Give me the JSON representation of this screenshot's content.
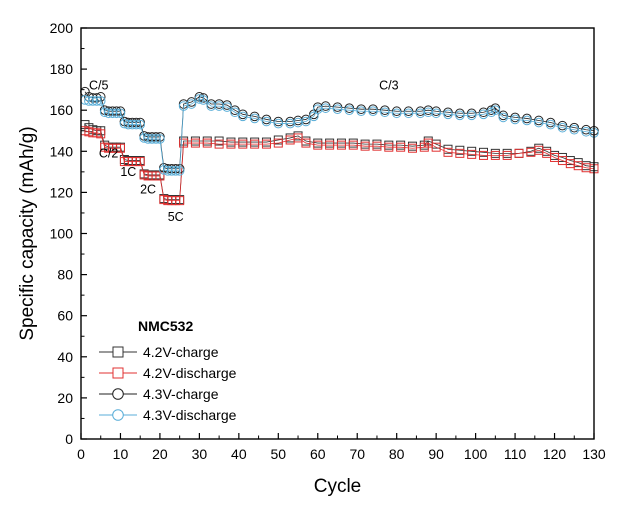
{
  "chart_data": {
    "type": "scatter",
    "xlabel": "Cycle",
    "ylabel": "Specific capacity (mAh/g)",
    "xlim": [
      0,
      130
    ],
    "ylim": [
      0,
      200
    ],
    "xticks": [
      "0",
      "10",
      "20",
      "30",
      "40",
      "50",
      "60",
      "70",
      "80",
      "90",
      "100",
      "110",
      "120",
      "130"
    ],
    "yticks": [
      "0",
      "20",
      "40",
      "60",
      "80",
      "100",
      "120",
      "140",
      "160",
      "180",
      "200"
    ],
    "grid": false,
    "legend_position": "bottom-left",
    "legend_title": "NMC532",
    "annotations": [
      {
        "text": "C/5",
        "x": 4.5,
        "y": 170
      },
      {
        "text": "C/2",
        "x": 7,
        "y": 137
      },
      {
        "text": "1C",
        "x": 12,
        "y": 128
      },
      {
        "text": "2C",
        "x": 17,
        "y": 119.5
      },
      {
        "text": "5C",
        "x": 24,
        "y": 106
      },
      {
        "text": "C/3",
        "x": 78,
        "y": 170
      }
    ],
    "series": [
      {
        "name": "4.2V-charge",
        "marker": "square",
        "color": "#333333",
        "values": [
          [
            1,
            153
          ],
          [
            2,
            151.5
          ],
          [
            3,
            150.5
          ],
          [
            4,
            150
          ],
          [
            5,
            150
          ],
          [
            6,
            143
          ],
          [
            7,
            142
          ],
          [
            8,
            142
          ],
          [
            9,
            142
          ],
          [
            10,
            142
          ],
          [
            11,
            136
          ],
          [
            12,
            135.5
          ],
          [
            13,
            135.5
          ],
          [
            14,
            135.5
          ],
          [
            15,
            135.5
          ],
          [
            16,
            129
          ],
          [
            17,
            128.5
          ],
          [
            18,
            128.5
          ],
          [
            19,
            128.5
          ],
          [
            20,
            128.5
          ],
          [
            21,
            117
          ],
          [
            22,
            116.5
          ],
          [
            23,
            116.5
          ],
          [
            24,
            116.5
          ],
          [
            25,
            116.5
          ],
          [
            26,
            145
          ],
          [
            29,
            145
          ],
          [
            32,
            145
          ],
          [
            35,
            145
          ],
          [
            38,
            144.5
          ],
          [
            41,
            144.5
          ],
          [
            44,
            144.5
          ],
          [
            47,
            144.5
          ],
          [
            50,
            145.5
          ],
          [
            53,
            146.5
          ],
          [
            55,
            147.5
          ],
          [
            57,
            145
          ],
          [
            60,
            144
          ],
          [
            63,
            144
          ],
          [
            66,
            144
          ],
          [
            69,
            144
          ],
          [
            72,
            143.5
          ],
          [
            75,
            143.5
          ],
          [
            78,
            143
          ],
          [
            81,
            143
          ],
          [
            84,
            142.5
          ],
          [
            87,
            143
          ],
          [
            88,
            145
          ],
          [
            90,
            143.5
          ],
          [
            93,
            141
          ],
          [
            96,
            140.5
          ],
          [
            99,
            140
          ],
          [
            102,
            139.5
          ],
          [
            105,
            139
          ],
          [
            108,
            139
          ],
          [
            111,
            139
          ],
          [
            114,
            140
          ],
          [
            116,
            141.5
          ],
          [
            118,
            140
          ],
          [
            120,
            138
          ],
          [
            122,
            137
          ],
          [
            124,
            135.5
          ],
          [
            126,
            134.5
          ],
          [
            128,
            133
          ],
          [
            130,
            132.5
          ]
        ]
      },
      {
        "name": "4.2V-discharge",
        "marker": "square",
        "color": "#e03030",
        "values": [
          [
            1,
            150
          ],
          [
            2,
            149.5
          ],
          [
            3,
            149
          ],
          [
            4,
            149
          ],
          [
            5,
            148.5
          ],
          [
            6,
            142
          ],
          [
            7,
            141.5
          ],
          [
            8,
            141.5
          ],
          [
            9,
            141.5
          ],
          [
            10,
            141.5
          ],
          [
            11,
            135
          ],
          [
            12,
            135
          ],
          [
            13,
            135
          ],
          [
            14,
            135
          ],
          [
            15,
            135
          ],
          [
            16,
            128.5
          ],
          [
            17,
            128
          ],
          [
            18,
            128
          ],
          [
            19,
            128
          ],
          [
            20,
            128
          ],
          [
            21,
            116.5
          ],
          [
            22,
            116
          ],
          [
            23,
            116
          ],
          [
            24,
            116
          ],
          [
            25,
            116
          ],
          [
            26,
            144
          ],
          [
            29,
            144
          ],
          [
            32,
            144
          ],
          [
            35,
            143.5
          ],
          [
            38,
            143.5
          ],
          [
            41,
            143.5
          ],
          [
            44,
            143.5
          ],
          [
            47,
            143.5
          ],
          [
            50,
            144
          ],
          [
            53,
            145.5
          ],
          [
            55,
            146.5
          ],
          [
            57,
            144
          ],
          [
            60,
            143
          ],
          [
            63,
            143
          ],
          [
            66,
            143
          ],
          [
            69,
            143
          ],
          [
            72,
            142.5
          ],
          [
            75,
            142.5
          ],
          [
            78,
            142
          ],
          [
            81,
            142
          ],
          [
            84,
            141.5
          ],
          [
            87,
            142
          ],
          [
            88,
            144
          ],
          [
            90,
            142
          ],
          [
            93,
            139.5
          ],
          [
            96,
            139
          ],
          [
            99,
            138.5
          ],
          [
            102,
            138
          ],
          [
            105,
            138
          ],
          [
            108,
            138
          ],
          [
            111,
            139
          ],
          [
            114,
            139.5
          ],
          [
            116,
            140.5
          ],
          [
            118,
            139
          ],
          [
            120,
            137
          ],
          [
            122,
            135.5
          ],
          [
            124,
            134
          ],
          [
            126,
            133
          ],
          [
            128,
            132
          ],
          [
            130,
            131.5
          ]
        ]
      },
      {
        "name": "4.3V-charge",
        "marker": "circle",
        "color": "#222222",
        "values": [
          [
            1,
            169
          ],
          [
            2,
            166.5
          ],
          [
            3,
            166
          ],
          [
            4,
            166
          ],
          [
            5,
            166.5
          ],
          [
            6,
            160
          ],
          [
            7,
            159.5
          ],
          [
            8,
            159.5
          ],
          [
            9,
            159.5
          ],
          [
            10,
            159.5
          ],
          [
            11,
            154.5
          ],
          [
            12,
            154
          ],
          [
            13,
            154
          ],
          [
            14,
            154
          ],
          [
            15,
            154
          ],
          [
            16,
            147.5
          ],
          [
            17,
            147
          ],
          [
            18,
            147
          ],
          [
            19,
            147
          ],
          [
            20,
            147
          ],
          [
            21,
            132
          ],
          [
            22,
            131.5
          ],
          [
            23,
            131.5
          ],
          [
            24,
            131.5
          ],
          [
            25,
            131.5
          ],
          [
            26,
            163
          ],
          [
            28,
            164
          ],
          [
            30,
            166.5
          ],
          [
            31,
            166
          ],
          [
            33,
            163
          ],
          [
            35,
            163
          ],
          [
            37,
            162.5
          ],
          [
            39,
            160
          ],
          [
            41,
            158
          ],
          [
            44,
            157
          ],
          [
            47,
            155.5
          ],
          [
            50,
            154.5
          ],
          [
            53,
            154.5
          ],
          [
            55,
            155
          ],
          [
            57,
            155.5
          ],
          [
            59,
            158
          ],
          [
            60,
            161.5
          ],
          [
            62,
            162
          ],
          [
            65,
            161.5
          ],
          [
            68,
            161
          ],
          [
            71,
            160.5
          ],
          [
            74,
            160.5
          ],
          [
            77,
            160
          ],
          [
            80,
            159.5
          ],
          [
            83,
            159.5
          ],
          [
            86,
            159.5
          ],
          [
            88,
            160
          ],
          [
            90,
            159.5
          ],
          [
            93,
            159
          ],
          [
            96,
            158.5
          ],
          [
            99,
            158.5
          ],
          [
            102,
            159
          ],
          [
            104,
            160
          ],
          [
            105,
            161
          ],
          [
            107,
            157.5
          ],
          [
            110,
            156.5
          ],
          [
            113,
            156
          ],
          [
            116,
            155
          ],
          [
            119,
            154
          ],
          [
            122,
            152.5
          ],
          [
            125,
            151.5
          ],
          [
            128,
            150.5
          ],
          [
            130,
            150
          ]
        ]
      },
      {
        "name": "4.3V-discharge",
        "marker": "circle",
        "color": "#5aaed8",
        "values": [
          [
            1,
            165
          ],
          [
            2,
            164.5
          ],
          [
            3,
            164.5
          ],
          [
            4,
            164.5
          ],
          [
            5,
            164.5
          ],
          [
            6,
            159
          ],
          [
            7,
            158.5
          ],
          [
            8,
            158.5
          ],
          [
            9,
            158.5
          ],
          [
            10,
            158.5
          ],
          [
            11,
            153.5
          ],
          [
            12,
            153
          ],
          [
            13,
            153
          ],
          [
            14,
            153
          ],
          [
            15,
            153
          ],
          [
            16,
            146.5
          ],
          [
            17,
            146
          ],
          [
            18,
            146
          ],
          [
            19,
            146
          ],
          [
            20,
            146
          ],
          [
            21,
            131
          ],
          [
            22,
            130.5
          ],
          [
            23,
            130.5
          ],
          [
            24,
            130.5
          ],
          [
            25,
            130.5
          ],
          [
            26,
            162
          ],
          [
            28,
            163
          ],
          [
            30,
            165.5
          ],
          [
            31,
            165
          ],
          [
            33,
            162
          ],
          [
            35,
            162
          ],
          [
            37,
            161.5
          ],
          [
            39,
            159
          ],
          [
            41,
            157
          ],
          [
            44,
            156
          ],
          [
            47,
            154.5
          ],
          [
            50,
            153.5
          ],
          [
            53,
            153.5
          ],
          [
            55,
            154
          ],
          [
            57,
            154.5
          ],
          [
            59,
            157
          ],
          [
            60,
            160.5
          ],
          [
            62,
            161
          ],
          [
            65,
            160.5
          ],
          [
            68,
            160
          ],
          [
            71,
            159.5
          ],
          [
            74,
            159.5
          ],
          [
            77,
            159
          ],
          [
            80,
            158.5
          ],
          [
            83,
            158.5
          ],
          [
            86,
            158.5
          ],
          [
            88,
            159
          ],
          [
            90,
            158.5
          ],
          [
            93,
            158
          ],
          [
            96,
            157.5
          ],
          [
            99,
            157.5
          ],
          [
            102,
            158
          ],
          [
            104,
            159
          ],
          [
            105,
            160
          ],
          [
            107,
            156.5
          ],
          [
            110,
            155.5
          ],
          [
            113,
            155
          ],
          [
            116,
            154
          ],
          [
            119,
            153
          ],
          [
            122,
            151.5
          ],
          [
            125,
            150.5
          ],
          [
            128,
            149.5
          ],
          [
            130,
            149
          ]
        ]
      }
    ]
  }
}
